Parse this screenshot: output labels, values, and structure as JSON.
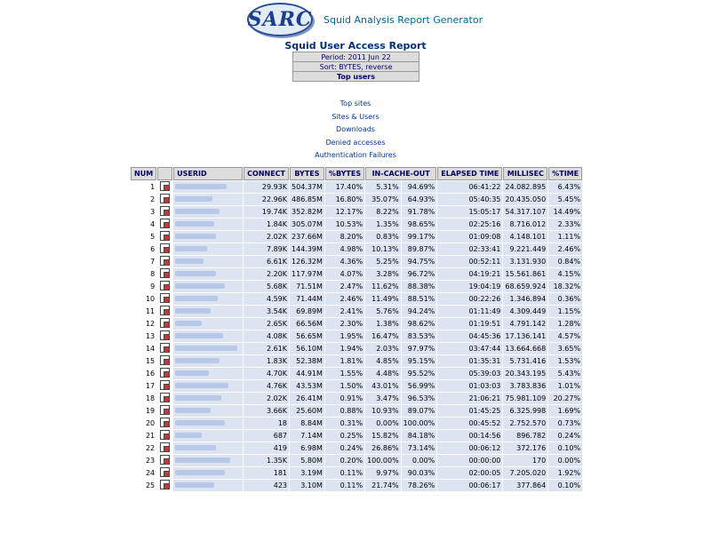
{
  "header": {
    "logo_text": "SARC",
    "app_title": "Squid Analysis Report Generator"
  },
  "report": {
    "title": "Squid User Access Report",
    "period": "Period: 2011 Jun 22",
    "sort": "Sort: BYTES, reverse",
    "section": "Top users"
  },
  "links": [
    "Top sites",
    "Sites & Users",
    "Downloads",
    "Denied accesses",
    "Authentication Failures"
  ],
  "table": {
    "columns": [
      "NUM",
      "",
      "USERID",
      "CONNECT",
      "BYTES",
      "%BYTES",
      "IN-CACHE-OUT",
      "",
      "ELAPSED TIME",
      "MILLISEC",
      "%TIME"
    ],
    "rows": [
      {
        "num": "1",
        "connect": "29.93K",
        "bytes": "504.37M",
        "pbytes": "17.40%",
        "in": "5.31%",
        "out": "94.69%",
        "elapsed": "06:41:22",
        "ms": "24.082.895",
        "ptime": "6.43%",
        "ulen": 58
      },
      {
        "num": "2",
        "connect": "22.96K",
        "bytes": "486.85M",
        "pbytes": "16.80%",
        "in": "35.07%",
        "out": "64.93%",
        "elapsed": "05:40:35",
        "ms": "20.435.050",
        "ptime": "5.45%",
        "ulen": 42
      },
      {
        "num": "3",
        "connect": "19.74K",
        "bytes": "352.82M",
        "pbytes": "12.17%",
        "in": "8.22%",
        "out": "91.78%",
        "elapsed": "15:05:17",
        "ms": "54.317.107",
        "ptime": "14.49%",
        "ulen": 50
      },
      {
        "num": "4",
        "connect": "1.84K",
        "bytes": "305.07M",
        "pbytes": "10.53%",
        "in": "1.35%",
        "out": "98.65%",
        "elapsed": "02:25:16",
        "ms": "8.716.012",
        "ptime": "2.33%",
        "ulen": 44
      },
      {
        "num": "5",
        "connect": "2.02K",
        "bytes": "237.66M",
        "pbytes": "8.20%",
        "in": "0.83%",
        "out": "99.17%",
        "elapsed": "01:09:08",
        "ms": "4.148.101",
        "ptime": "1.11%",
        "ulen": 46
      },
      {
        "num": "6",
        "connect": "7.89K",
        "bytes": "144.39M",
        "pbytes": "4.98%",
        "in": "10.13%",
        "out": "89.87%",
        "elapsed": "02:33:41",
        "ms": "9.221.449",
        "ptime": "2.46%",
        "ulen": 36
      },
      {
        "num": "7",
        "connect": "6.61K",
        "bytes": "126.32M",
        "pbytes": "4.36%",
        "in": "5.25%",
        "out": "94.75%",
        "elapsed": "00:52:11",
        "ms": "3.131.930",
        "ptime": "0.84%",
        "ulen": 32
      },
      {
        "num": "8",
        "connect": "2.20K",
        "bytes": "117.97M",
        "pbytes": "4.07%",
        "in": "3.28%",
        "out": "96.72%",
        "elapsed": "04:19:21",
        "ms": "15.561.861",
        "ptime": "4.15%",
        "ulen": 46
      },
      {
        "num": "9",
        "connect": "5.68K",
        "bytes": "71.51M",
        "pbytes": "2.47%",
        "in": "11.62%",
        "out": "88.38%",
        "elapsed": "19:04:19",
        "ms": "68.659.924",
        "ptime": "18.32%",
        "ulen": 56
      },
      {
        "num": "10",
        "connect": "4.59K",
        "bytes": "71.44M",
        "pbytes": "2.46%",
        "in": "11.49%",
        "out": "88.51%",
        "elapsed": "00:22:26",
        "ms": "1.346.894",
        "ptime": "0.36%",
        "ulen": 48
      },
      {
        "num": "11",
        "connect": "3.54K",
        "bytes": "69.89M",
        "pbytes": "2.41%",
        "in": "5.76%",
        "out": "94.24%",
        "elapsed": "01:11:49",
        "ms": "4.309.449",
        "ptime": "1.15%",
        "ulen": 40
      },
      {
        "num": "12",
        "connect": "2.65K",
        "bytes": "66.56M",
        "pbytes": "2.30%",
        "in": "1.38%",
        "out": "98.62%",
        "elapsed": "01:19:51",
        "ms": "4.791.142",
        "ptime": "1.28%",
        "ulen": 30
      },
      {
        "num": "13",
        "connect": "4.08K",
        "bytes": "56.65M",
        "pbytes": "1.95%",
        "in": "16.47%",
        "out": "83.53%",
        "elapsed": "04:45:36",
        "ms": "17.136.141",
        "ptime": "4.57%",
        "ulen": 54
      },
      {
        "num": "14",
        "connect": "2.61K",
        "bytes": "56.10M",
        "pbytes": "1.94%",
        "in": "2.03%",
        "out": "97.97%",
        "elapsed": "03:47:44",
        "ms": "13.664.668",
        "ptime": "3.65%",
        "ulen": 70
      },
      {
        "num": "15",
        "connect": "1.83K",
        "bytes": "52.38M",
        "pbytes": "1.81%",
        "in": "4.85%",
        "out": "95.15%",
        "elapsed": "01:35:31",
        "ms": "5.731.416",
        "ptime": "1.53%",
        "ulen": 50
      },
      {
        "num": "16",
        "connect": "4.70K",
        "bytes": "44.91M",
        "pbytes": "1.55%",
        "in": "4.48%",
        "out": "95.52%",
        "elapsed": "05:39:03",
        "ms": "20.343.195",
        "ptime": "5.43%",
        "ulen": 38
      },
      {
        "num": "17",
        "connect": "4.76K",
        "bytes": "43.53M",
        "pbytes": "1.50%",
        "in": "43.01%",
        "out": "56.99%",
        "elapsed": "01:03:03",
        "ms": "3.783.836",
        "ptime": "1.01%",
        "ulen": 60
      },
      {
        "num": "18",
        "connect": "2.02K",
        "bytes": "26.41M",
        "pbytes": "0.91%",
        "in": "3.47%",
        "out": "96.53%",
        "elapsed": "21:06:21",
        "ms": "75.981.109",
        "ptime": "20.27%",
        "ulen": 52
      },
      {
        "num": "19",
        "connect": "3.66K",
        "bytes": "25.60M",
        "pbytes": "0.88%",
        "in": "10.93%",
        "out": "89.07%",
        "elapsed": "01:45:25",
        "ms": "6.325.998",
        "ptime": "1.69%",
        "ulen": 40
      },
      {
        "num": "20",
        "connect": "18",
        "bytes": "8.84M",
        "pbytes": "0.31%",
        "in": "0.00%",
        "out": "100.00%",
        "elapsed": "00:45:52",
        "ms": "2.752.570",
        "ptime": "0.73%",
        "ulen": 56
      },
      {
        "num": "21",
        "connect": "687",
        "bytes": "7.14M",
        "pbytes": "0.25%",
        "in": "15.82%",
        "out": "84.18%",
        "elapsed": "00:14:56",
        "ms": "896.782",
        "ptime": "0.24%",
        "ulen": 30
      },
      {
        "num": "22",
        "connect": "419",
        "bytes": "6.98M",
        "pbytes": "0.24%",
        "in": "26.86%",
        "out": "73.14%",
        "elapsed": "00:06:12",
        "ms": "372.176",
        "ptime": "0.10%",
        "ulen": 46
      },
      {
        "num": "23",
        "connect": "1.35K",
        "bytes": "5.80M",
        "pbytes": "0.20%",
        "in": "100.00%",
        "out": "0.00%",
        "elapsed": "00:00:00",
        "ms": "170",
        "ptime": "0.00%",
        "ulen": 62
      },
      {
        "num": "24",
        "connect": "181",
        "bytes": "3.19M",
        "pbytes": "0.11%",
        "in": "9.97%",
        "out": "90.03%",
        "elapsed": "02:00:05",
        "ms": "7.205.020",
        "ptime": "1.92%",
        "ulen": 56
      },
      {
        "num": "25",
        "connect": "423",
        "bytes": "3.10M",
        "pbytes": "0.11%",
        "in": "21.74%",
        "out": "78.26%",
        "elapsed": "00:06:17",
        "ms": "377.864",
        "ptime": "0.10%",
        "ulen": 44
      }
    ]
  },
  "colors": {
    "link": "#003399",
    "header_bg": "#dcdcdc",
    "row_bg": "#dce3f1"
  },
  "icons": {
    "row_icon": "graph-report-icon"
  }
}
